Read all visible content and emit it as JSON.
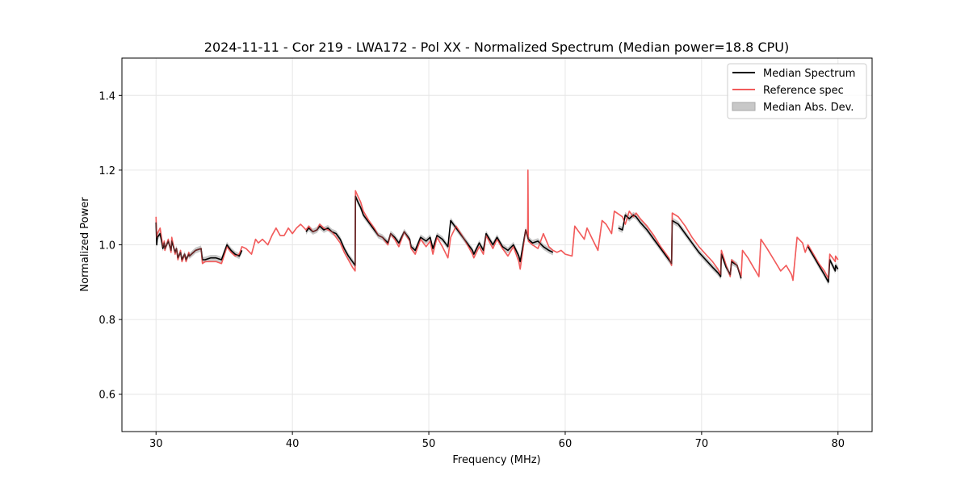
{
  "chart_data": {
    "type": "line",
    "title": "2024-11-11 - Cor 219 - LWA172 - Pol XX - Normalized Spectrum (Median power=18.8 CPU)",
    "xlabel": "Frequency (MHz)",
    "ylabel": "Normalized Power",
    "xlim": [
      27.5,
      82.5
    ],
    "ylim": [
      0.5,
      1.5
    ],
    "xticks": [
      30,
      40,
      50,
      60,
      70,
      80
    ],
    "yticks": [
      0.6,
      0.8,
      1.0,
      1.2,
      1.4
    ],
    "xtick_labels": [
      "30",
      "40",
      "50",
      "60",
      "70",
      "80"
    ],
    "ytick_labels": [
      "0.6",
      "0.8",
      "1.0",
      "1.2",
      "1.4"
    ],
    "grid": true,
    "legend_position": "top-right",
    "legend": {
      "median": "Median Spectrum",
      "reference": "Reference spec",
      "mad": "Median Abs. Dev."
    },
    "colors": {
      "median": "#000000",
      "reference": "#f25b5b",
      "mad_fill": "#c8c8c8",
      "grid": "#e6e6e6"
    },
    "series": [
      {
        "name": "Reference spec",
        "segments": [
          {
            "x": [
              30.0,
              30.05,
              30.1,
              30.3,
              30.5,
              30.6,
              30.65,
              30.9,
              31.1,
              31.15,
              31.4,
              31.5,
              31.6,
              31.8,
              31.9,
              32.1,
              32.2,
              32.4,
              32.45,
              32.9,
              33.3,
              33.4,
              33.6,
              34.0,
              34.4,
              34.8,
              35.2,
              35.3,
              35.5,
              35.8,
              36.1,
              36.3,
              36.6,
              37.0,
              37.3,
              37.5,
              37.8,
              38.2,
              38.5,
              38.8,
              39.1,
              39.4,
              39.7,
              40.0,
              40.3,
              40.6,
              41.0,
              41.2,
              41.5,
              41.8,
              42.0,
              42.3,
              42.6,
              42.9,
              43.2,
              43.5,
              43.8,
              44.1,
              44.4,
              44.6,
              44.62,
              44.8,
              45.0,
              45.2,
              45.6,
              46.0,
              46.3,
              46.6,
              47.0,
              47.2,
              47.5,
              47.8,
              48.2,
              48.6,
              48.7,
              49.0,
              49.4,
              49.8,
              50.1,
              50.3,
              50.6,
              51.0,
              51.4,
              51.6,
              52.0,
              52.6,
              53.2,
              53.3,
              53.7,
              54.0,
              54.2,
              54.7,
              55.0,
              55.4,
              55.8,
              56.2,
              56.6,
              56.7,
              57.1,
              57.25,
              57.27,
              57.3,
              57.6,
              58.0,
              58.4,
              58.8,
              59.1,
              59.4,
              59.7,
              60.0,
              60.5,
              60.7,
              61.0,
              61.4,
              61.6,
              62.0,
              62.4,
              62.7,
              63.0,
              63.4,
              63.6,
              64.2,
              64.4,
              64.7,
              65.0,
              65.2,
              65.5,
              66.0,
              66.5,
              67.0,
              67.6,
              67.8,
              67.85,
              68.3,
              68.8,
              69.3,
              69.8,
              70.3,
              70.8,
              71.2,
              71.4,
              71.45,
              71.8,
              72.1,
              72.2,
              72.6,
              72.9,
              73.0,
              73.4,
              73.8,
              74.2,
              74.35,
              74.8,
              75.3,
              75.8,
              76.2,
              76.6,
              76.7,
              77.0,
              77.4,
              77.6,
              77.8,
              78.2,
              78.6,
              79.0,
              79.3,
              79.4,
              79.8,
              79.82,
              80.0
            ],
            "y": [
              1.075,
              1.02,
              1.03,
              1.045,
              0.995,
              1.01,
              0.985,
              1.015,
              0.98,
              1.02,
              0.975,
              0.99,
              0.96,
              0.985,
              0.955,
              0.975,
              0.955,
              0.98,
              0.97,
              0.985,
              0.99,
              0.95,
              0.955,
              0.955,
              0.955,
              0.95,
              0.995,
              0.99,
              0.98,
              0.97,
              0.975,
              0.995,
              0.99,
              0.975,
              1.015,
              1.005,
              1.015,
              1.0,
              1.025,
              1.045,
              1.025,
              1.025,
              1.045,
              1.03,
              1.045,
              1.055,
              1.04,
              1.05,
              1.035,
              1.04,
              1.055,
              1.045,
              1.04,
              1.035,
              1.02,
              1.005,
              0.98,
              0.96,
              0.94,
              0.93,
              1.145,
              1.13,
              1.115,
              1.09,
              1.065,
              1.045,
              1.025,
              1.02,
              1.0,
              1.03,
              1.015,
              0.995,
              1.035,
              1.01,
              0.99,
              0.975,
              1.015,
              0.995,
              1.01,
              0.975,
              1.02,
              0.995,
              0.965,
              1.02,
              1.05,
              1.015,
              0.975,
              0.965,
              0.995,
              0.975,
              1.025,
              0.99,
              1.015,
              0.99,
              0.97,
              0.995,
              0.955,
              0.935,
              1.04,
              1.02,
              1.2,
              1.01,
              1.0,
              0.99,
              1.03,
              0.995,
              0.985,
              0.98,
              0.985,
              0.975,
              0.97,
              1.05,
              1.035,
              1.015,
              1.045,
              1.015,
              0.985,
              1.065,
              1.055,
              1.03,
              1.09,
              1.075,
              1.055,
              1.09,
              1.075,
              1.085,
              1.07,
              1.05,
              1.025,
              0.995,
              0.965,
              0.945,
              1.085,
              1.075,
              1.05,
              1.02,
              0.995,
              0.975,
              0.955,
              0.935,
              0.92,
              0.985,
              0.945,
              0.915,
              0.96,
              0.945,
              0.915,
              0.985,
              0.965,
              0.94,
              0.915,
              1.015,
              0.99,
              0.96,
              0.93,
              0.945,
              0.92,
              0.905,
              1.02,
              1.005,
              0.98,
              1.0,
              0.975,
              0.95,
              0.93,
              0.91,
              0.975,
              0.955,
              0.97,
              0.96
            ]
          }
        ]
      },
      {
        "name": "Median Spectrum",
        "segments": [
          {
            "x": [
              30.0,
              30.05,
              30.1,
              30.3,
              30.5,
              30.6,
              30.65,
              30.9,
              31.1,
              31.15,
              31.4,
              31.5,
              31.6,
              31.8,
              31.9,
              32.1,
              32.2,
              32.4,
              32.45,
              32.9,
              33.3,
              33.4,
              33.6,
              34.0,
              34.4,
              34.8,
              35.2,
              35.3,
              35.5,
              35.8,
              36.1,
              36.3
            ],
            "y": [
              1.06,
              1.0,
              1.02,
              1.03,
              0.99,
              1.005,
              0.99,
              1.01,
              0.985,
              1.01,
              0.98,
              0.99,
              0.965,
              0.98,
              0.96,
              0.975,
              0.96,
              0.975,
              0.97,
              0.985,
              0.99,
              0.96,
              0.96,
              0.965,
              0.965,
              0.96,
              1.0,
              0.995,
              0.985,
              0.975,
              0.97,
              0.985
            ]
          },
          {
            "x": [
              41.0,
              41.2,
              41.5,
              41.8,
              42.0,
              42.3,
              42.6,
              42.9,
              43.2,
              43.5,
              43.8,
              44.1,
              44.4,
              44.6,
              44.62,
              44.8,
              45.0,
              45.2,
              45.6,
              46.0,
              46.3,
              46.6,
              47.0,
              47.2,
              47.5,
              47.8,
              48.2,
              48.6,
              48.7,
              49.0,
              49.4,
              49.8,
              50.1,
              50.3,
              50.6,
              51.0,
              51.4,
              51.6,
              52.0,
              52.6,
              53.2,
              53.3,
              53.7,
              54.0,
              54.2,
              54.7,
              55.0,
              55.4,
              55.8,
              56.2,
              56.6,
              56.7,
              57.1,
              57.3,
              57.6,
              58.0,
              58.4,
              58.8,
              59.1
            ],
            "y": [
              1.035,
              1.045,
              1.035,
              1.04,
              1.05,
              1.04,
              1.045,
              1.035,
              1.03,
              1.015,
              0.99,
              0.97,
              0.955,
              0.945,
              1.13,
              1.115,
              1.1,
              1.08,
              1.06,
              1.04,
              1.025,
              1.02,
              1.005,
              1.03,
              1.02,
              1.005,
              1.035,
              1.015,
              0.995,
              0.985,
              1.02,
              1.01,
              1.02,
              0.99,
              1.025,
              1.015,
              0.995,
              1.065,
              1.045,
              1.015,
              0.985,
              0.975,
              1.005,
              0.985,
              1.03,
              1.0,
              1.02,
              0.995,
              0.985,
              1.0,
              0.97,
              0.955,
              1.04,
              1.015,
              1.005,
              1.01,
              0.995,
              0.985,
              0.98
            ]
          },
          {
            "x": [
              63.9,
              64.2,
              64.4,
              64.7,
              65.0,
              65.2,
              65.5,
              66.0,
              66.5,
              67.0,
              67.6,
              67.8,
              67.85,
              68.3,
              68.8,
              69.3,
              69.8,
              70.3,
              70.8,
              71.2,
              71.4,
              71.45,
              71.8,
              72.1,
              72.2,
              72.6,
              72.9
            ],
            "y": [
              1.045,
              1.04,
              1.08,
              1.07,
              1.08,
              1.075,
              1.06,
              1.04,
              1.015,
              0.99,
              0.96,
              0.95,
              1.065,
              1.055,
              1.03,
              1.005,
              0.98,
              0.96,
              0.94,
              0.925,
              0.915,
              0.975,
              0.94,
              0.92,
              0.955,
              0.945,
              0.91
            ]
          },
          {
            "x": [
              77.8,
              78.2,
              78.6,
              79.0,
              79.3,
              79.4,
              79.8,
              79.82,
              80.0
            ],
            "y": [
              0.995,
              0.97,
              0.945,
              0.92,
              0.9,
              0.96,
              0.93,
              0.945,
              0.935
            ]
          }
        ]
      }
    ],
    "mad_band_halfwidth": 0.008
  }
}
